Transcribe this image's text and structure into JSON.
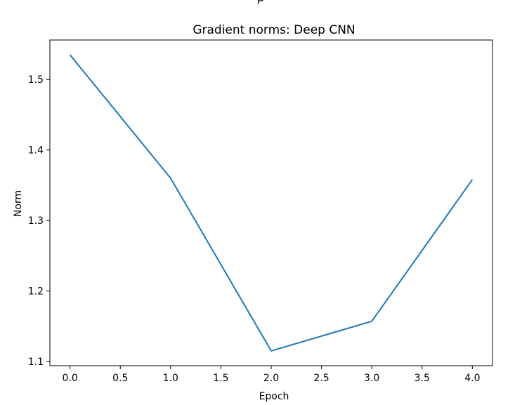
{
  "chart_data": {
    "type": "line",
    "title": "Gradient norms: Deep CNN",
    "xlabel": "Epoch",
    "ylabel": "Norm",
    "x": [
      0,
      1,
      2,
      3,
      4
    ],
    "series": [
      {
        "values": [
          1.535,
          1.36,
          1.115,
          1.157,
          1.358
        ],
        "color": "#1f77b4"
      }
    ],
    "xlim": [
      -0.2,
      4.2
    ],
    "ylim": [
      1.094,
      1.556
    ],
    "xticks": [
      "0.0",
      "0.5",
      "1.0",
      "1.5",
      "2.0",
      "2.5",
      "3.0",
      "3.5",
      "4.0"
    ],
    "xtick_values": [
      0,
      0.5,
      1,
      1.5,
      2,
      2.5,
      3,
      3.5,
      4
    ],
    "yticks": [
      "1.1",
      "1.2",
      "1.3",
      "1.4",
      "1.5"
    ],
    "ytick_values": [
      1.1,
      1.2,
      1.3,
      1.4,
      1.5
    ],
    "grid": false,
    "legend": false
  },
  "top_fragment": "p"
}
